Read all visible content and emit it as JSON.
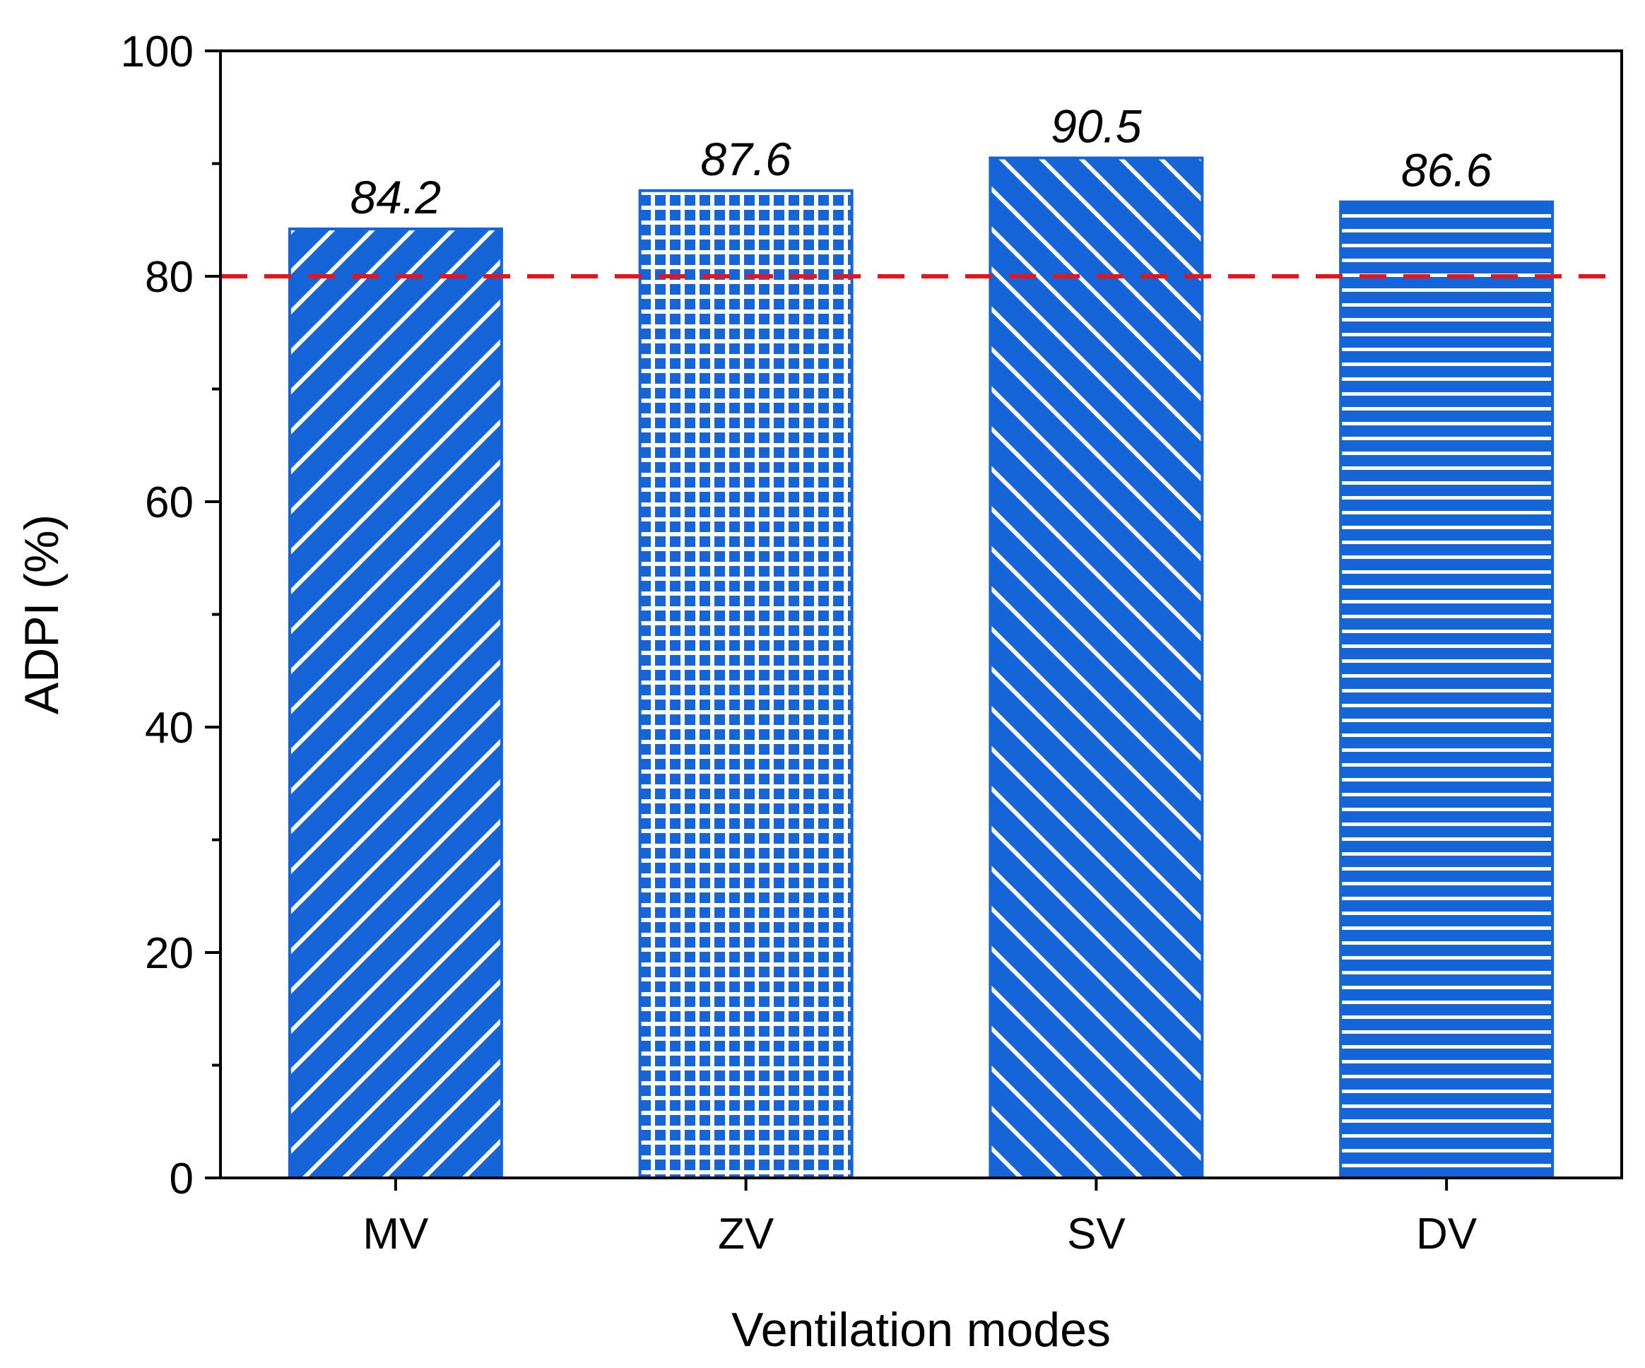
{
  "chart_data": {
    "type": "bar",
    "categories": [
      "MV",
      "ZV",
      "SV",
      "DV"
    ],
    "values": [
      84.2,
      87.6,
      90.5,
      86.6
    ],
    "data_labels": [
      "84.2",
      "87.6",
      "90.5",
      "86.6"
    ],
    "patterns": [
      "diag-up",
      "grid",
      "diag-down",
      "horizontal"
    ],
    "xlabel": "Ventilation modes",
    "ylabel": "ADPI (%)",
    "ylim": [
      0,
      100
    ],
    "yticks": [
      0,
      20,
      40,
      60,
      80,
      100
    ],
    "yticks_minor": [
      10,
      30,
      50,
      70,
      90
    ],
    "reference_line": {
      "value": 80,
      "style": "dashed",
      "color": "#e8141b"
    },
    "bar_color": "#1565d8",
    "grid": false
  }
}
